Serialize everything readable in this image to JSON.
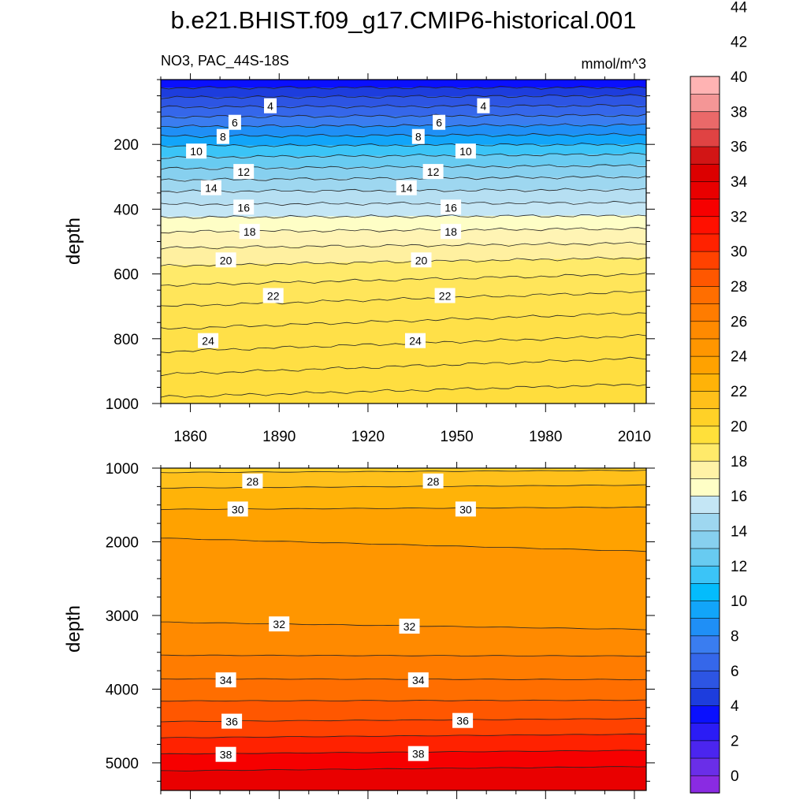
{
  "title": "b.e21.BHIST.f09_g17.CMIP6-historical.001",
  "subtitle_left": "NO3, PAC_44S-18S",
  "subtitle_right": "mmol/m^3",
  "chart_data": [
    {
      "type": "heatmap",
      "panel": "upper",
      "ylabel": "depth",
      "xlim": [
        1850,
        2014
      ],
      "ylim": [
        1000,
        0
      ],
      "x_ticks": [
        1860,
        1890,
        1920,
        1950,
        1980,
        2010
      ],
      "y_ticks": [
        200,
        400,
        600,
        800,
        1000
      ],
      "contour_depths_start": [
        25,
        55,
        85,
        115,
        145,
        175,
        205,
        240,
        275,
        310,
        345,
        385,
        425,
        470,
        520,
        575,
        635,
        700,
        770,
        840,
        910,
        980
      ],
      "contour_depths_end": [
        25,
        50,
        80,
        110,
        140,
        170,
        200,
        230,
        265,
        300,
        340,
        380,
        420,
        460,
        505,
        550,
        600,
        655,
        720,
        790,
        860,
        940
      ],
      "contour_labels": [
        {
          "value": "4",
          "x": 1887,
          "y": 82
        },
        {
          "value": "4",
          "x": 1959,
          "y": 82
        },
        {
          "value": "6",
          "x": 1875,
          "y": 133
        },
        {
          "value": "6",
          "x": 1944,
          "y": 133
        },
        {
          "value": "8",
          "x": 1871,
          "y": 177
        },
        {
          "value": "8",
          "x": 1937,
          "y": 177
        },
        {
          "value": "10",
          "x": 1862,
          "y": 222
        },
        {
          "value": "10",
          "x": 1953,
          "y": 222
        },
        {
          "value": "12",
          "x": 1878,
          "y": 285
        },
        {
          "value": "12",
          "x": 1942,
          "y": 285
        },
        {
          "value": "14",
          "x": 1867,
          "y": 335
        },
        {
          "value": "14",
          "x": 1933,
          "y": 335
        },
        {
          "value": "16",
          "x": 1878,
          "y": 395
        },
        {
          "value": "16",
          "x": 1948,
          "y": 395
        },
        {
          "value": "18",
          "x": 1880,
          "y": 470
        },
        {
          "value": "18",
          "x": 1948,
          "y": 470
        },
        {
          "value": "20",
          "x": 1872,
          "y": 558
        },
        {
          "value": "20",
          "x": 1938,
          "y": 558
        },
        {
          "value": "22",
          "x": 1888,
          "y": 668
        },
        {
          "value": "22",
          "x": 1946,
          "y": 668
        },
        {
          "value": "24",
          "x": 1866,
          "y": 807
        },
        {
          "value": "24",
          "x": 1936,
          "y": 807
        }
      ]
    },
    {
      "type": "heatmap",
      "panel": "lower",
      "ylabel": "depth",
      "xlim": [
        1850,
        2014
      ],
      "ylim": [
        5375,
        1000
      ],
      "x_ticks": [
        1860,
        1890,
        1920,
        1950,
        1980,
        2010
      ],
      "y_ticks": [
        1000,
        2000,
        3000,
        4000,
        5000
      ],
      "contour_depths_start": [
        1060,
        1270,
        1560,
        1950,
        3090,
        3540,
        3860,
        4160,
        4440,
        4660,
        4880,
        5110
      ],
      "contour_depths_end": [
        1030,
        1230,
        1530,
        2130,
        3190,
        3550,
        3870,
        4150,
        4400,
        4610,
        4830,
        5050
      ],
      "contour_labels": [
        {
          "value": "28",
          "x": 1881,
          "y": 1180
        },
        {
          "value": "28",
          "x": 1942,
          "y": 1180
        },
        {
          "value": "30",
          "x": 1876,
          "y": 1560
        },
        {
          "value": "30",
          "x": 1953,
          "y": 1560
        },
        {
          "value": "32",
          "x": 1890,
          "y": 3120
        },
        {
          "value": "32",
          "x": 1934,
          "y": 3150
        },
        {
          "value": "34",
          "x": 1872,
          "y": 3880
        },
        {
          "value": "34",
          "x": 1937,
          "y": 3880
        },
        {
          "value": "36",
          "x": 1874,
          "y": 4440
        },
        {
          "value": "36",
          "x": 1952,
          "y": 4430
        },
        {
          "value": "38",
          "x": 1872,
          "y": 4890
        },
        {
          "value": "38",
          "x": 1937,
          "y": 4880
        }
      ]
    }
  ],
  "colorbar": {
    "labels": [
      "0",
      "2",
      "4",
      "6",
      "8",
      "10",
      "12",
      "14",
      "16",
      "18",
      "20",
      "22",
      "24",
      "26",
      "28",
      "30",
      "32",
      "34",
      "36",
      "38",
      "40",
      "42",
      "44"
    ],
    "colors": [
      "#8a2be2",
      "#6a2ee8",
      "#4b25ef",
      "#2b1cf5",
      "#0a10fe",
      "#1d3ddd",
      "#2d55e3",
      "#3567ea",
      "#3a7df0",
      "#1f8ff6",
      "#12a5f9",
      "#04bcfc",
      "#3bc4f7",
      "#68cbf1",
      "#87d0ef",
      "#9ed7f0",
      "#c4e6f5",
      "#fefec6",
      "#fff2a6",
      "#ffea6a",
      "#ffe03a",
      "#ffd127",
      "#ffc01a",
      "#ffb308",
      "#ffa200",
      "#ff9600",
      "#ff8a00",
      "#ff7c00",
      "#ff6e00",
      "#ff5700",
      "#ff4200",
      "#ff2200",
      "#ff1000",
      "#f60000",
      "#e90000",
      "#dc0000",
      "#d21515",
      "#e04343",
      "#ea6969",
      "#f49696",
      "#ffb3b3"
    ]
  }
}
